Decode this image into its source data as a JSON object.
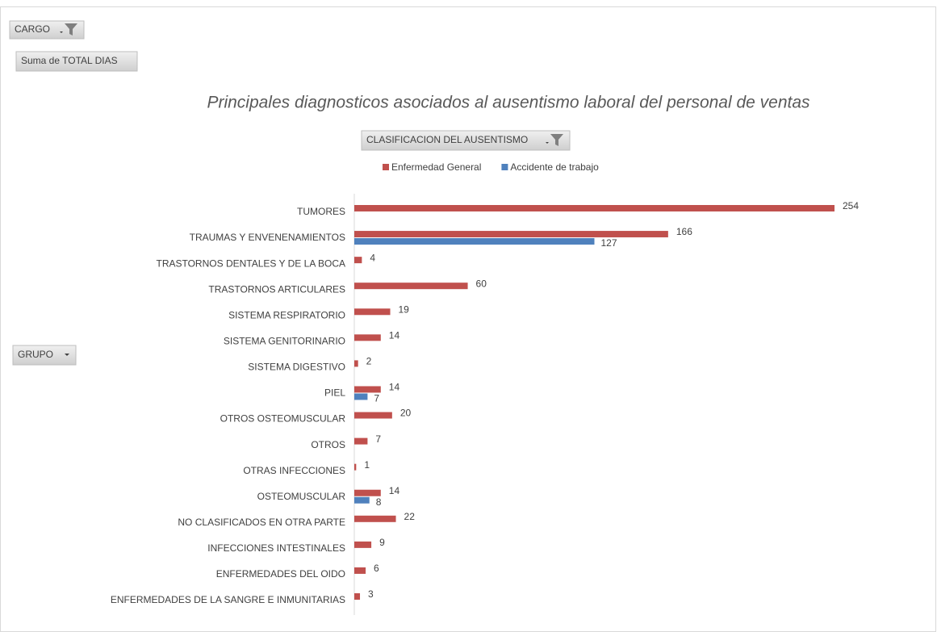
{
  "pivot_fields": {
    "report_filter": "CARGO",
    "values_field": "Suma de TOTAL DIAS",
    "legend_field": "CLASIFICACION DEL AUSENTISMO",
    "axis_field": "GRUPO"
  },
  "chart_data": {
    "type": "hbar",
    "title": "Principales diagnosticos asociados al ausentismo laboral del personal de ventas",
    "categories": [
      "TUMORES",
      "TRAUMAS Y ENVENENAMIENTOS",
      "TRASTORNOS DENTALES Y DE LA BOCA",
      "TRASTORNOS ARTICULARES",
      "SISTEMA RESPIRATORIO",
      "SISTEMA GENITORINARIO",
      "SISTEMA DIGESTIVO",
      "PIEL",
      "OTROS OSTEOMUSCULAR",
      "OTROS",
      "OTRAS INFECCIONES",
      "OSTEOMUSCULAR",
      "NO CLASIFICADOS EN OTRA PARTE",
      "INFECCIONES INTESTINALES",
      "ENFERMEDADES DEL OIDO",
      "ENFERMEDADES DE LA SANGRE E INMUNITARIAS"
    ],
    "series": [
      {
        "name": "Enfermedad General",
        "color": "#c0504d",
        "values": [
          254,
          166,
          4,
          60,
          19,
          14,
          2,
          14,
          20,
          7,
          1,
          14,
          22,
          9,
          6,
          3
        ]
      },
      {
        "name": "Accidente de trabajo",
        "color": "#4f81bd",
        "values": [
          null,
          127,
          null,
          null,
          null,
          null,
          null,
          7,
          null,
          null,
          null,
          8,
          null,
          null,
          null,
          null
        ]
      }
    ]
  }
}
